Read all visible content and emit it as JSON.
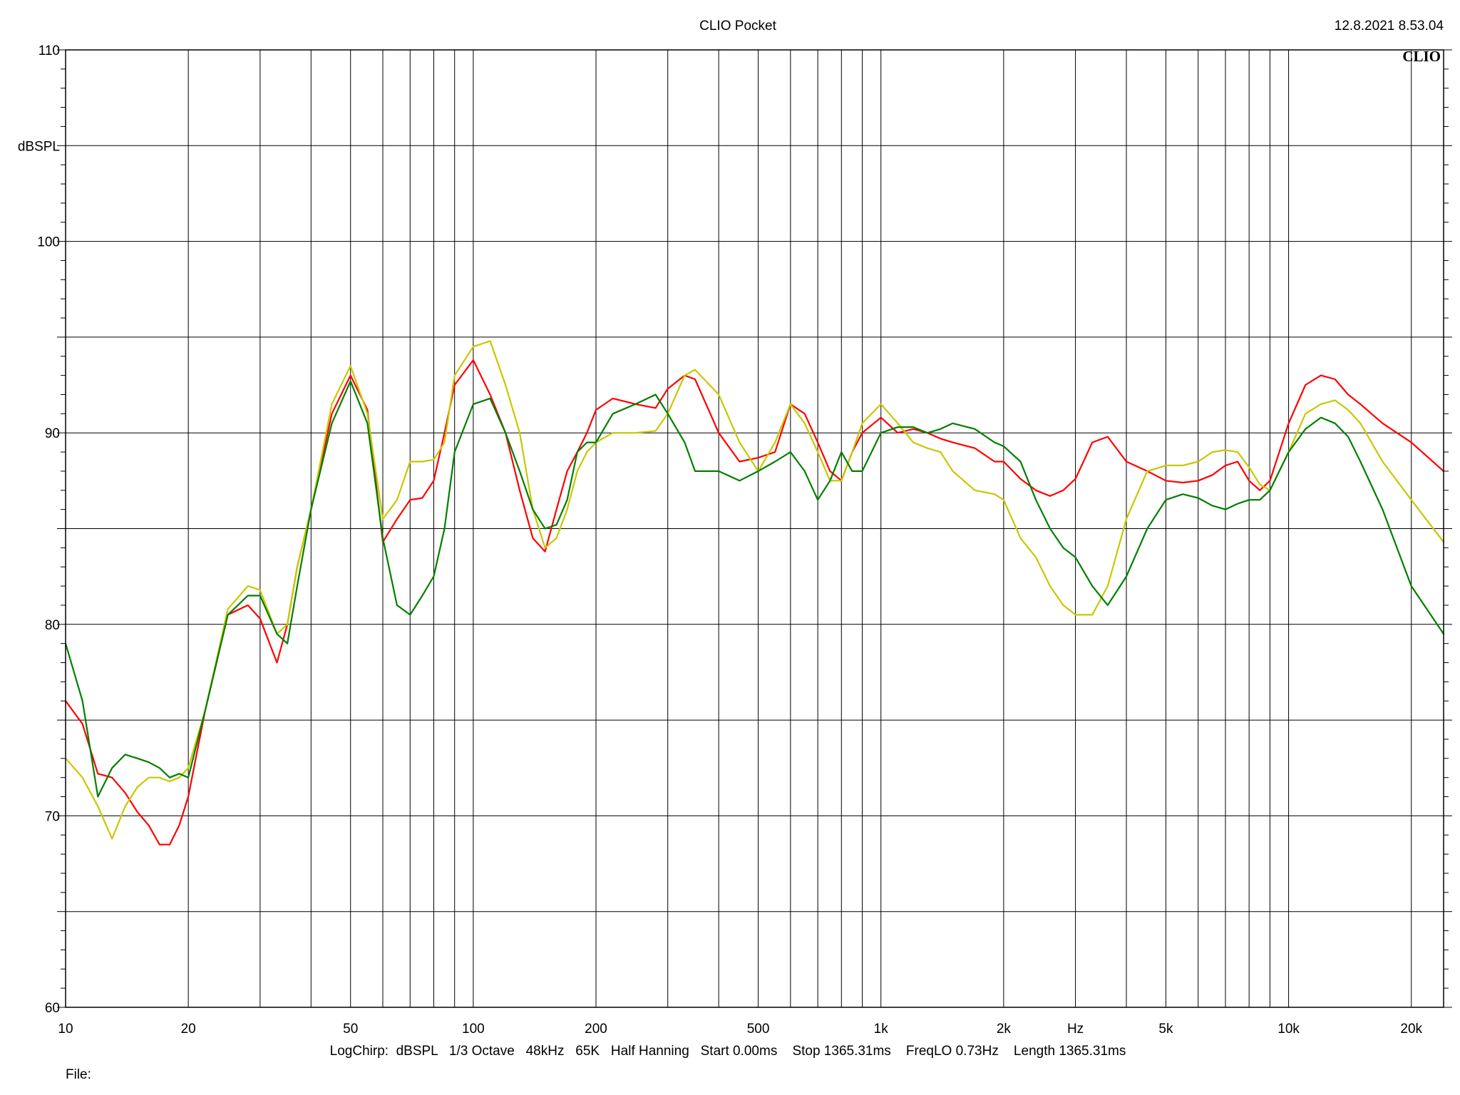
{
  "header": {
    "title": "CLIO Pocket",
    "datetime": "12.8.2021 8.53.04",
    "logo_text": "CLIO"
  },
  "footer": {
    "settings": "LogChirp:  dBSPL   1/3 Octave   48kHz   65K   Half Hanning   Start 0.00ms    Stop 1365.31ms    FreqLO 0.73Hz    Length 1365.31ms",
    "file_label": "File:"
  },
  "chart_data": {
    "type": "line",
    "title": "CLIO Pocket",
    "xlabel": "Hz",
    "ylabel": "dBSPL",
    "xscale": "log",
    "xlim": [
      10,
      24000
    ],
    "ylim": [
      60,
      110
    ],
    "grid": true,
    "x_ticks": [
      {
        "value": 10,
        "label": "10"
      },
      {
        "value": 20,
        "label": "20"
      },
      {
        "value": 50,
        "label": "50"
      },
      {
        "value": 100,
        "label": "100"
      },
      {
        "value": 200,
        "label": "200"
      },
      {
        "value": 500,
        "label": "500"
      },
      {
        "value": 1000,
        "label": "1k"
      },
      {
        "value": 2000,
        "label": "2k"
      },
      {
        "value": 5000,
        "label": "5k"
      },
      {
        "value": 10000,
        "label": "10k"
      },
      {
        "value": 20000,
        "label": "20k"
      }
    ],
    "x_unit_label": {
      "value": 3000,
      "label": "Hz"
    },
    "y_ticks": [
      60,
      70,
      80,
      90,
      100,
      110
    ],
    "y_unit_label": {
      "value": 105,
      "label": "dBSPL"
    },
    "series": [
      {
        "color": "#ff0000",
        "x": [
          10,
          11,
          12,
          13,
          14,
          15,
          16,
          17,
          18,
          19,
          20,
          22,
          25,
          28,
          30,
          33,
          35,
          37,
          40,
          45,
          50,
          55,
          60,
          65,
          70,
          75,
          80,
          85,
          90,
          100,
          110,
          120,
          130,
          140,
          150,
          160,
          170,
          180,
          190,
          200,
          220,
          250,
          280,
          300,
          330,
          350,
          400,
          450,
          500,
          550,
          600,
          650,
          700,
          750,
          800,
          850,
          900,
          1000,
          1100,
          1200,
          1300,
          1400,
          1500,
          1700,
          1900,
          2000,
          2200,
          2400,
          2600,
          2800,
          3000,
          3300,
          3600,
          4000,
          4500,
          5000,
          5500,
          6000,
          6500,
          7000,
          7500,
          8000,
          8500,
          9000,
          10000,
          11000,
          12000,
          13000,
          14000,
          15000,
          17000,
          20000,
          24000
        ],
        "y": [
          76,
          74.8,
          72.2,
          72,
          71.2,
          70.2,
          69.5,
          68.5,
          68.5,
          69.5,
          71,
          75.5,
          80.5,
          81,
          80.3,
          78,
          80,
          83,
          86,
          91,
          93,
          91.2,
          84.3,
          85.5,
          86.5,
          86.6,
          87.5,
          90,
          92.5,
          93.8,
          92,
          90,
          87,
          84.5,
          83.8,
          86,
          88,
          89,
          90,
          91.2,
          91.8,
          91.5,
          91.3,
          92.3,
          93,
          92.8,
          90,
          88.5,
          88.7,
          89,
          91.5,
          91,
          89.5,
          88,
          87.5,
          89,
          90,
          90.8,
          90,
          90.2,
          90,
          89.7,
          89.5,
          89.2,
          88.5,
          88.5,
          87.6,
          87,
          86.7,
          87,
          87.6,
          89.5,
          89.8,
          88.5,
          88,
          87.5,
          87.4,
          87.5,
          87.8,
          88.3,
          88.5,
          87.5,
          87,
          87.5,
          90.5,
          92.5,
          93,
          92.8,
          92,
          91.5,
          90.5,
          89.5,
          88
        ]
      },
      {
        "color": "#c8c800",
        "x": [
          10,
          11,
          12,
          13,
          14,
          15,
          16,
          17,
          18,
          19,
          20,
          22,
          25,
          28,
          30,
          33,
          35,
          37,
          40,
          45,
          50,
          55,
          60,
          65,
          70,
          75,
          80,
          85,
          90,
          100,
          110,
          120,
          130,
          140,
          150,
          160,
          170,
          180,
          190,
          200,
          220,
          250,
          280,
          300,
          330,
          350,
          400,
          450,
          500,
          550,
          600,
          650,
          700,
          750,
          800,
          850,
          900,
          1000,
          1100,
          1200,
          1300,
          1400,
          1500,
          1700,
          1900,
          2000,
          2200,
          2400,
          2600,
          2800,
          3000,
          3300,
          3600,
          4000,
          4500,
          5000,
          5500,
          6000,
          6500,
          7000,
          7500,
          8000,
          8500,
          9000,
          10000,
          11000,
          12000,
          13000,
          14000,
          15000,
          17000,
          20000,
          24000
        ],
        "y": [
          73,
          72,
          70.5,
          68.8,
          70.5,
          71.5,
          72,
          72,
          71.8,
          72,
          72.5,
          75.5,
          80.8,
          82,
          81.8,
          79.5,
          80,
          83,
          86,
          91.5,
          93.5,
          91,
          85.5,
          86.5,
          88.5,
          88.5,
          88.6,
          89.5,
          93,
          94.5,
          94.8,
          92.5,
          90,
          86,
          84,
          84.5,
          86,
          88,
          89,
          89.5,
          90,
          90,
          90.1,
          91,
          93,
          93.3,
          92,
          89.5,
          88,
          89.5,
          91.5,
          90.5,
          89,
          87.5,
          87.5,
          89,
          90.5,
          91.5,
          90.5,
          89.5,
          89.2,
          89,
          88,
          87,
          86.8,
          86.5,
          84.5,
          83.5,
          82,
          81,
          80.5,
          80.5,
          82,
          85.5,
          88,
          88.3,
          88.3,
          88.5,
          89,
          89.1,
          89,
          88.2,
          87.3,
          87,
          89,
          91,
          91.5,
          91.7,
          91.2,
          90.5,
          88.5,
          86.5,
          84.3
        ]
      },
      {
        "color": "#007f00",
        "x": [
          10,
          11,
          12,
          13,
          14,
          15,
          16,
          17,
          18,
          19,
          20,
          22,
          25,
          28,
          30,
          33,
          35,
          37,
          40,
          45,
          50,
          55,
          60,
          65,
          70,
          75,
          80,
          85,
          90,
          100,
          110,
          120,
          130,
          140,
          150,
          160,
          170,
          180,
          190,
          200,
          220,
          250,
          280,
          300,
          330,
          350,
          400,
          450,
          500,
          550,
          600,
          650,
          700,
          750,
          800,
          850,
          900,
          1000,
          1100,
          1200,
          1300,
          1400,
          1500,
          1700,
          1900,
          2000,
          2200,
          2400,
          2600,
          2800,
          3000,
          3300,
          3600,
          4000,
          4500,
          5000,
          5500,
          6000,
          6500,
          7000,
          7500,
          8000,
          8500,
          9000,
          10000,
          11000,
          12000,
          13000,
          14000,
          15000,
          17000,
          20000,
          24000
        ],
        "y": [
          79,
          76,
          71,
          72.5,
          73.2,
          73,
          72.8,
          72.5,
          72,
          72.2,
          72,
          75.5,
          80.5,
          81.5,
          81.5,
          79.5,
          79,
          82,
          86,
          90.5,
          92.7,
          90.5,
          84.5,
          81,
          80.5,
          81.5,
          82.5,
          85,
          89,
          91.5,
          91.8,
          90,
          88,
          86,
          85,
          85.2,
          86.5,
          89,
          89.5,
          89.5,
          91,
          91.5,
          92,
          91,
          89.5,
          88,
          88,
          87.5,
          88,
          88.5,
          89,
          88,
          86.5,
          87.5,
          89,
          88,
          88,
          90,
          90.3,
          90.3,
          90,
          90.2,
          90.5,
          90.2,
          89.5,
          89.3,
          88.5,
          86.5,
          85,
          84,
          83.5,
          82,
          81,
          82.5,
          85,
          86.5,
          86.8,
          86.6,
          86.2,
          86,
          86.3,
          86.5,
          86.5,
          87,
          89,
          90.2,
          90.8,
          90.5,
          89.8,
          88.5,
          86,
          82,
          79.5
        ]
      }
    ]
  }
}
